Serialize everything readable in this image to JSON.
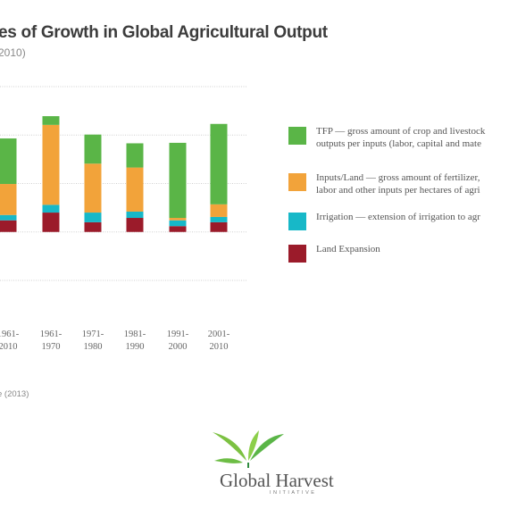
{
  "chart_data": {
    "type": "bar",
    "stacked": true,
    "title": "es of Growth in Global Agricultural Output",
    "subtitle": "2010)",
    "categories": [
      [
        "1961-",
        "2010"
      ],
      [
        "1961-",
        "1970"
      ],
      [
        "1971-",
        "1980"
      ],
      [
        "1981-",
        "1990"
      ],
      [
        "1991-",
        "2000"
      ],
      [
        "2001-",
        "2010"
      ]
    ],
    "series": [
      {
        "name": "Land Expansion",
        "color": "#9b1b2a",
        "values": [
          0.24,
          0.4,
          0.2,
          0.29,
          0.12,
          0.2
        ]
      },
      {
        "name": "Irrigation — extension of irrigation to agr",
        "color": "#17b8c8",
        "values": [
          0.11,
          0.16,
          0.2,
          0.13,
          0.12,
          0.11
        ]
      },
      {
        "name": "Inputs/Land — gross amount of fertilizer, labor and other inputs per hectares of agri",
        "color": "#f2a33a",
        "values": [
          0.64,
          1.65,
          1.01,
          0.91,
          0.05,
          0.26
        ]
      },
      {
        "name": "TFP — gross amount of crop and livestock outputs per inputs (labor, capital and mate",
        "color": "#5ab547",
        "values": [
          0.94,
          0.18,
          0.6,
          0.5,
          1.55,
          1.66
        ]
      }
    ],
    "legend": [
      {
        "lines": [
          "TFP — gross amount of crop and livestock",
          "outputs per inputs (labor, capital and mate"
        ],
        "color": "#5ab547"
      },
      {
        "lines": [
          "Inputs/Land — gross amount of fertilizer,",
          "labor and other inputs per hectares of agri"
        ],
        "color": "#f2a33a"
      },
      {
        "lines": [
          "Irrigation — extension of irrigation to agr"
        ],
        "color": "#17b8c8"
      },
      {
        "lines": [
          "Land Expansion"
        ],
        "color": "#9b1b2a"
      }
    ],
    "legend_position": "right",
    "ylim": [
      -1.0,
      3.0
    ],
    "gridlines": [
      3.0,
      2.0,
      1.0,
      0.0,
      -1.0
    ],
    "grid": true
  },
  "source": "e (2013)",
  "logo": {
    "name": "Global Harvest",
    "tagline": "INITIATIVE"
  }
}
